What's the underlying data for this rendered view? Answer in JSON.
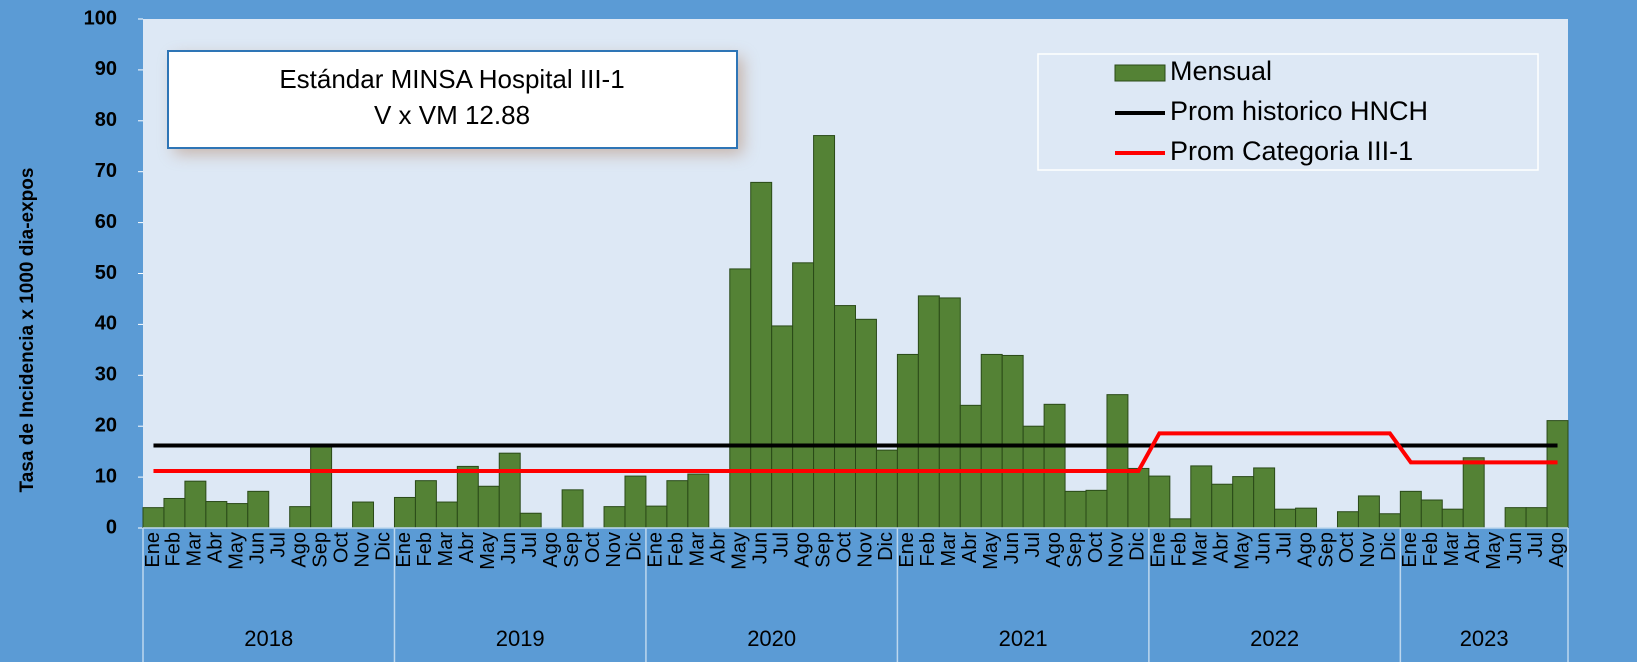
{
  "chart_data": {
    "type": "bar",
    "y_label": "Tasa de Incidencia x 1000 dia-expos",
    "annotation": [
      "Estándar MINSA Hospital III-1",
      "V x VM 12.88"
    ],
    "groups": [
      {
        "name": "2018",
        "categories": [
          "Ene",
          "Feb",
          "Mar",
          "Abr",
          "May",
          "Jun",
          "Jul",
          "Ago",
          "Sep",
          "Oct",
          "Nov",
          "Dic"
        ]
      },
      {
        "name": "2019",
        "categories": [
          "Ene",
          "Feb",
          "Mar",
          "Abr",
          "May",
          "Jun",
          "Jul",
          "Ago",
          "Sep",
          "Oct",
          "Nov",
          "Dic"
        ]
      },
      {
        "name": "2020",
        "categories": [
          "Ene",
          "Feb",
          "Mar",
          "Abr",
          "May",
          "Jun",
          "Jul",
          "Ago",
          "Sep",
          "Oct",
          "Nov",
          "Dic"
        ]
      },
      {
        "name": "2021",
        "categories": [
          "Ene",
          "Feb",
          "Mar",
          "Abr",
          "May",
          "Jun",
          "Jul",
          "Ago",
          "Sep",
          "Oct",
          "Nov",
          "Dic"
        ]
      },
      {
        "name": "2022",
        "categories": [
          "Ene",
          "Feb",
          "Mar",
          "Abr",
          "May",
          "Jun",
          "Jul",
          "Ago",
          "Sep",
          "Oct",
          "Nov",
          "Dic"
        ]
      },
      {
        "name": "2023",
        "categories": [
          "Ene",
          "Feb",
          "Mar",
          "Abr",
          "May",
          "Jun",
          "Jul",
          "Ago"
        ]
      }
    ],
    "series": [
      {
        "name": "Mensual",
        "type": "bar",
        "color": "#548235",
        "values": [
          4,
          5.8,
          9.2,
          5.2,
          4.8,
          7.2,
          0,
          4.2,
          16.2,
          0,
          5.1,
          0,
          6,
          9.3,
          5.1,
          12.1,
          8.2,
          14.7,
          2.9,
          0,
          7.5,
          0,
          4.2,
          10.2,
          4.3,
          9.3,
          10.6,
          0,
          50.9,
          67.9,
          39.7,
          52.1,
          77.1,
          43.7,
          41,
          15.3,
          34.1,
          45.6,
          45.2,
          24.1,
          34.1,
          33.9,
          20,
          24.3,
          7.2,
          7.4,
          26.2,
          11.7,
          10.2,
          1.8,
          12.2,
          8.6,
          10.1,
          11.8,
          3.7,
          3.9,
          0,
          3.2,
          6.3,
          2.8,
          7.2,
          5.5,
          3.7,
          13.8,
          0,
          4,
          4,
          21.1
        ]
      },
      {
        "name": "Prom historico HNCH",
        "type": "line",
        "color": "#000000",
        "values": [
          16.2,
          16.2,
          16.2,
          16.2,
          16.2,
          16.2,
          16.2,
          16.2,
          16.2,
          16.2,
          16.2,
          16.2,
          16.2,
          16.2,
          16.2,
          16.2,
          16.2,
          16.2,
          16.2,
          16.2,
          16.2,
          16.2,
          16.2,
          16.2,
          16.2,
          16.2,
          16.2,
          16.2,
          16.2,
          16.2,
          16.2,
          16.2,
          16.2,
          16.2,
          16.2,
          16.2,
          16.2,
          16.2,
          16.2,
          16.2,
          16.2,
          16.2,
          16.2,
          16.2,
          16.2,
          16.2,
          16.2,
          16.2,
          16.2,
          16.2,
          16.2,
          16.2,
          16.2,
          16.2,
          16.2,
          16.2,
          16.2,
          16.2,
          16.2,
          16.2,
          16.2,
          16.2,
          16.2,
          16.2,
          16.2,
          16.2,
          16.2,
          16.2
        ]
      },
      {
        "name": "Prom Categoria III-1",
        "type": "line",
        "color": "#ff0000",
        "values": [
          11.2,
          11.2,
          11.2,
          11.2,
          11.2,
          11.2,
          11.2,
          11.2,
          11.2,
          11.2,
          11.2,
          11.2,
          11.2,
          11.2,
          11.2,
          11.2,
          11.2,
          11.2,
          11.2,
          11.2,
          11.2,
          11.2,
          11.2,
          11.2,
          11.2,
          11.2,
          11.2,
          11.2,
          11.2,
          11.2,
          11.2,
          11.2,
          11.2,
          11.2,
          11.2,
          11.2,
          11.2,
          11.2,
          11.2,
          11.2,
          11.2,
          11.2,
          11.2,
          11.2,
          11.2,
          11.2,
          11.2,
          11.2,
          18.6,
          18.6,
          18.6,
          18.6,
          18.6,
          18.6,
          18.6,
          18.6,
          18.6,
          18.6,
          18.6,
          18.6,
          12.9,
          12.9,
          12.9,
          12.9,
          12.9,
          12.9,
          12.9,
          12.9
        ]
      }
    ],
    "ylim": [
      0,
      100
    ],
    "yticks": [
      0,
      10,
      20,
      30,
      40,
      50,
      60,
      70,
      80,
      90,
      100
    ],
    "grid": false,
    "legend": "top-right"
  }
}
